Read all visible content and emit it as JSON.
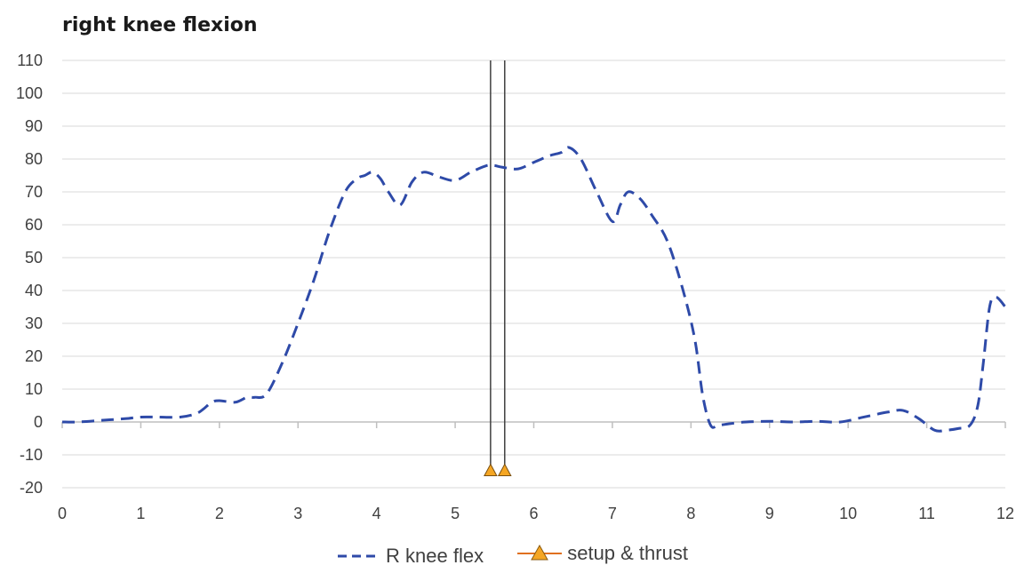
{
  "chart_data": {
    "type": "line",
    "title": "right knee flexion",
    "xlabel": "",
    "ylabel": "",
    "xlim": [
      0,
      12
    ],
    "ylim": [
      -20,
      110
    ],
    "xticks": [
      0,
      1,
      2,
      3,
      4,
      5,
      6,
      7,
      8,
      9,
      10,
      11,
      12
    ],
    "yticks": [
      -20,
      -10,
      0,
      10,
      20,
      30,
      40,
      50,
      60,
      70,
      80,
      90,
      100,
      110
    ],
    "grid": "horizontal",
    "legend_position": "bottom",
    "series": [
      {
        "name": "R knee flex",
        "style": "dashed",
        "color": "#2e4aa8",
        "x": [
          0,
          0.2,
          0.5,
          0.8,
          1.0,
          1.2,
          1.5,
          1.7,
          1.8,
          1.9,
          2.0,
          2.2,
          2.35,
          2.45,
          2.6,
          2.8,
          3.0,
          3.2,
          3.4,
          3.6,
          3.75,
          3.85,
          3.95,
          4.05,
          4.15,
          4.3,
          4.45,
          4.6,
          4.8,
          5.0,
          5.2,
          5.4,
          5.5,
          5.6,
          5.8,
          6.0,
          6.2,
          6.35,
          6.45,
          6.6,
          6.8,
          7.0,
          7.1,
          7.2,
          7.35,
          7.5,
          7.7,
          7.9,
          8.05,
          8.15,
          8.25,
          8.35,
          8.5,
          8.7,
          9.0,
          9.3,
          9.6,
          9.9,
          10.2,
          10.5,
          10.7,
          10.9,
          11.1,
          11.25,
          11.4,
          11.55,
          11.65,
          11.72,
          11.8,
          11.88,
          12.0
        ],
        "y": [
          0,
          0,
          0.5,
          1,
          1.5,
          1.5,
          1.5,
          2.5,
          4,
          6,
          6.5,
          6,
          7.5,
          7.5,
          8.5,
          18,
          30,
          43,
          58,
          70,
          74,
          75,
          76,
          74,
          70,
          66,
          73,
          76,
          74.5,
          73.5,
          76,
          78,
          78,
          77.5,
          77,
          79,
          81,
          82,
          83.5,
          80,
          70,
          61,
          66,
          70,
          68,
          63,
          55,
          40,
          25,
          8,
          -1,
          -1,
          -0.5,
          0,
          0.2,
          0,
          0.2,
          0,
          1.5,
          3,
          3.5,
          1,
          -2.5,
          -2.5,
          -2,
          -1,
          5,
          18,
          35,
          38,
          35
        ]
      },
      {
        "name": "setup & thrust",
        "style": "markers",
        "marker": "triangle",
        "color": "#f5a623",
        "x": [
          5.45,
          5.63
        ],
        "y": [
          -15,
          -15
        ]
      }
    ],
    "annotations": [
      {
        "type": "vertical-line",
        "x": 5.45,
        "from": -15,
        "to": 110
      },
      {
        "type": "vertical-line",
        "x": 5.63,
        "from": -15,
        "to": 110
      }
    ]
  }
}
